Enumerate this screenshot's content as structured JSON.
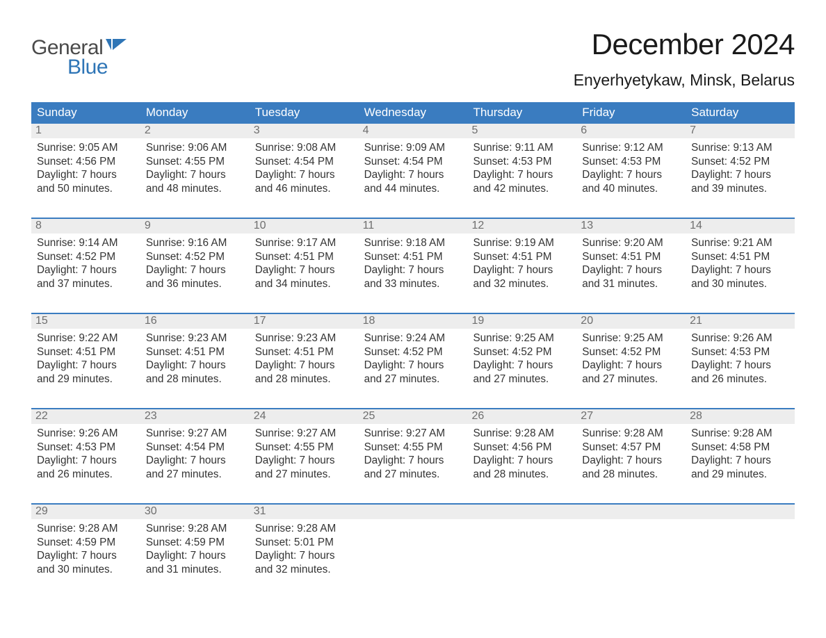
{
  "logo": {
    "word1": "General",
    "word2": "Blue",
    "flag_color": "#2e75b6"
  },
  "title": "December 2024",
  "location": "Enyerhyetykaw, Minsk, Belarus",
  "colors": {
    "header_bg": "#3a7cc0",
    "header_text": "#ffffff",
    "date_row_bg": "#ededed",
    "date_text": "#6e6e6e",
    "body_text": "#333333",
    "separator": "#3a7cc0",
    "background": "#ffffff",
    "logo_gray": "#4a4a4a",
    "logo_blue": "#2e75b6"
  },
  "typography": {
    "title_fontsize": 42,
    "location_fontsize": 23,
    "dayheader_fontsize": 17,
    "date_fontsize": 16,
    "cell_fontsize": 15.3,
    "logo_fontsize": 30
  },
  "day_names": [
    "Sunday",
    "Monday",
    "Tuesday",
    "Wednesday",
    "Thursday",
    "Friday",
    "Saturday"
  ],
  "weeks": [
    {
      "dates": [
        "1",
        "2",
        "3",
        "4",
        "5",
        "6",
        "7"
      ],
      "cells": [
        {
          "sunrise": "9:05 AM",
          "sunset": "4:56 PM",
          "daylight": "7 hours and 50 minutes."
        },
        {
          "sunrise": "9:06 AM",
          "sunset": "4:55 PM",
          "daylight": "7 hours and 48 minutes."
        },
        {
          "sunrise": "9:08 AM",
          "sunset": "4:54 PM",
          "daylight": "7 hours and 46 minutes."
        },
        {
          "sunrise": "9:09 AM",
          "sunset": "4:54 PM",
          "daylight": "7 hours and 44 minutes."
        },
        {
          "sunrise": "9:11 AM",
          "sunset": "4:53 PM",
          "daylight": "7 hours and 42 minutes."
        },
        {
          "sunrise": "9:12 AM",
          "sunset": "4:53 PM",
          "daylight": "7 hours and 40 minutes."
        },
        {
          "sunrise": "9:13 AM",
          "sunset": "4:52 PM",
          "daylight": "7 hours and 39 minutes."
        }
      ]
    },
    {
      "dates": [
        "8",
        "9",
        "10",
        "11",
        "12",
        "13",
        "14"
      ],
      "cells": [
        {
          "sunrise": "9:14 AM",
          "sunset": "4:52 PM",
          "daylight": "7 hours and 37 minutes."
        },
        {
          "sunrise": "9:16 AM",
          "sunset": "4:52 PM",
          "daylight": "7 hours and 36 minutes."
        },
        {
          "sunrise": "9:17 AM",
          "sunset": "4:51 PM",
          "daylight": "7 hours and 34 minutes."
        },
        {
          "sunrise": "9:18 AM",
          "sunset": "4:51 PM",
          "daylight": "7 hours and 33 minutes."
        },
        {
          "sunrise": "9:19 AM",
          "sunset": "4:51 PM",
          "daylight": "7 hours and 32 minutes."
        },
        {
          "sunrise": "9:20 AM",
          "sunset": "4:51 PM",
          "daylight": "7 hours and 31 minutes."
        },
        {
          "sunrise": "9:21 AM",
          "sunset": "4:51 PM",
          "daylight": "7 hours and 30 minutes."
        }
      ]
    },
    {
      "dates": [
        "15",
        "16",
        "17",
        "18",
        "19",
        "20",
        "21"
      ],
      "cells": [
        {
          "sunrise": "9:22 AM",
          "sunset": "4:51 PM",
          "daylight": "7 hours and 29 minutes."
        },
        {
          "sunrise": "9:23 AM",
          "sunset": "4:51 PM",
          "daylight": "7 hours and 28 minutes."
        },
        {
          "sunrise": "9:23 AM",
          "sunset": "4:51 PM",
          "daylight": "7 hours and 28 minutes."
        },
        {
          "sunrise": "9:24 AM",
          "sunset": "4:52 PM",
          "daylight": "7 hours and 27 minutes."
        },
        {
          "sunrise": "9:25 AM",
          "sunset": "4:52 PM",
          "daylight": "7 hours and 27 minutes."
        },
        {
          "sunrise": "9:25 AM",
          "sunset": "4:52 PM",
          "daylight": "7 hours and 27 minutes."
        },
        {
          "sunrise": "9:26 AM",
          "sunset": "4:53 PM",
          "daylight": "7 hours and 26 minutes."
        }
      ]
    },
    {
      "dates": [
        "22",
        "23",
        "24",
        "25",
        "26",
        "27",
        "28"
      ],
      "cells": [
        {
          "sunrise": "9:26 AM",
          "sunset": "4:53 PM",
          "daylight": "7 hours and 26 minutes."
        },
        {
          "sunrise": "9:27 AM",
          "sunset": "4:54 PM",
          "daylight": "7 hours and 27 minutes."
        },
        {
          "sunrise": "9:27 AM",
          "sunset": "4:55 PM",
          "daylight": "7 hours and 27 minutes."
        },
        {
          "sunrise": "9:27 AM",
          "sunset": "4:55 PM",
          "daylight": "7 hours and 27 minutes."
        },
        {
          "sunrise": "9:28 AM",
          "sunset": "4:56 PM",
          "daylight": "7 hours and 28 minutes."
        },
        {
          "sunrise": "9:28 AM",
          "sunset": "4:57 PM",
          "daylight": "7 hours and 28 minutes."
        },
        {
          "sunrise": "9:28 AM",
          "sunset": "4:58 PM",
          "daylight": "7 hours and 29 minutes."
        }
      ]
    },
    {
      "dates": [
        "29",
        "30",
        "31",
        "",
        "",
        "",
        ""
      ],
      "cells": [
        {
          "sunrise": "9:28 AM",
          "sunset": "4:59 PM",
          "daylight": "7 hours and 30 minutes."
        },
        {
          "sunrise": "9:28 AM",
          "sunset": "4:59 PM",
          "daylight": "7 hours and 31 minutes."
        },
        {
          "sunrise": "9:28 AM",
          "sunset": "5:01 PM",
          "daylight": "7 hours and 32 minutes."
        },
        null,
        null,
        null,
        null
      ]
    }
  ],
  "labels": {
    "sunrise_prefix": "Sunrise: ",
    "sunset_prefix": "Sunset: ",
    "daylight_prefix": "Daylight: "
  }
}
